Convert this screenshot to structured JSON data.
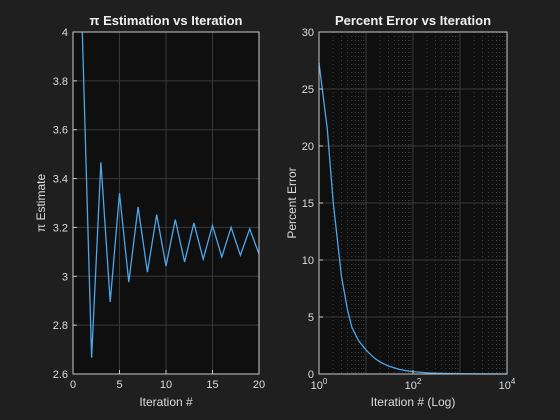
{
  "chart_data": [
    {
      "type": "line",
      "title": "π Estimation vs Iteration",
      "xlabel": "Iteration #",
      "ylabel": "π Estimate",
      "xlim": [
        0,
        20
      ],
      "ylim": [
        2.6,
        4
      ],
      "xticks": [
        0,
        5,
        10,
        15,
        20
      ],
      "yticks": [
        2.6,
        2.8,
        3,
        3.2,
        3.4,
        3.6,
        3.8,
        4
      ],
      "grid": true,
      "series": [
        {
          "color": "#4da6e8",
          "x": [
            1,
            2,
            3,
            4,
            5,
            6,
            7,
            8,
            9,
            10,
            11,
            12,
            13,
            14,
            15,
            16,
            17,
            18,
            19,
            20
          ],
          "y": [
            4,
            2.6667,
            3.4667,
            2.8952,
            3.3397,
            2.976,
            3.2837,
            3.0171,
            3.2524,
            3.0418,
            3.2323,
            3.0584,
            3.2184,
            3.0703,
            3.2082,
            3.0792,
            3.2003,
            3.0861,
            3.1941,
            3.0916
          ]
        }
      ]
    },
    {
      "type": "line",
      "title": "Percent Error vs Iteration",
      "xlabel": "Iteration # (Log)",
      "ylabel": "Percent Error",
      "xscale": "log",
      "xlim": [
        1,
        10000
      ],
      "ylim": [
        0,
        30
      ],
      "xticks": [
        1,
        100,
        10000
      ],
      "xtick_labels": [
        {
          "base": "10",
          "exp": "0"
        },
        {
          "base": "10",
          "exp": "2"
        },
        {
          "base": "10",
          "exp": "4"
        }
      ],
      "yticks": [
        0,
        5,
        10,
        15,
        20,
        25,
        30
      ],
      "grid": true,
      "minor_grid": true,
      "series": [
        {
          "color": "#4da6e8",
          "x": [
            1,
            1.5,
            2,
            3,
            4,
            5,
            7,
            10,
            15,
            20,
            30,
            50,
            70,
            100,
            200,
            500,
            1000,
            3000,
            10000
          ],
          "y": [
            27.3,
            21.5,
            15.1,
            8.6,
            5.7,
            4.1,
            2.9,
            2.1,
            1.4,
            1.05,
            0.7,
            0.42,
            0.3,
            0.21,
            0.1,
            0.04,
            0.02,
            0.007,
            0.002
          ]
        }
      ]
    }
  ]
}
